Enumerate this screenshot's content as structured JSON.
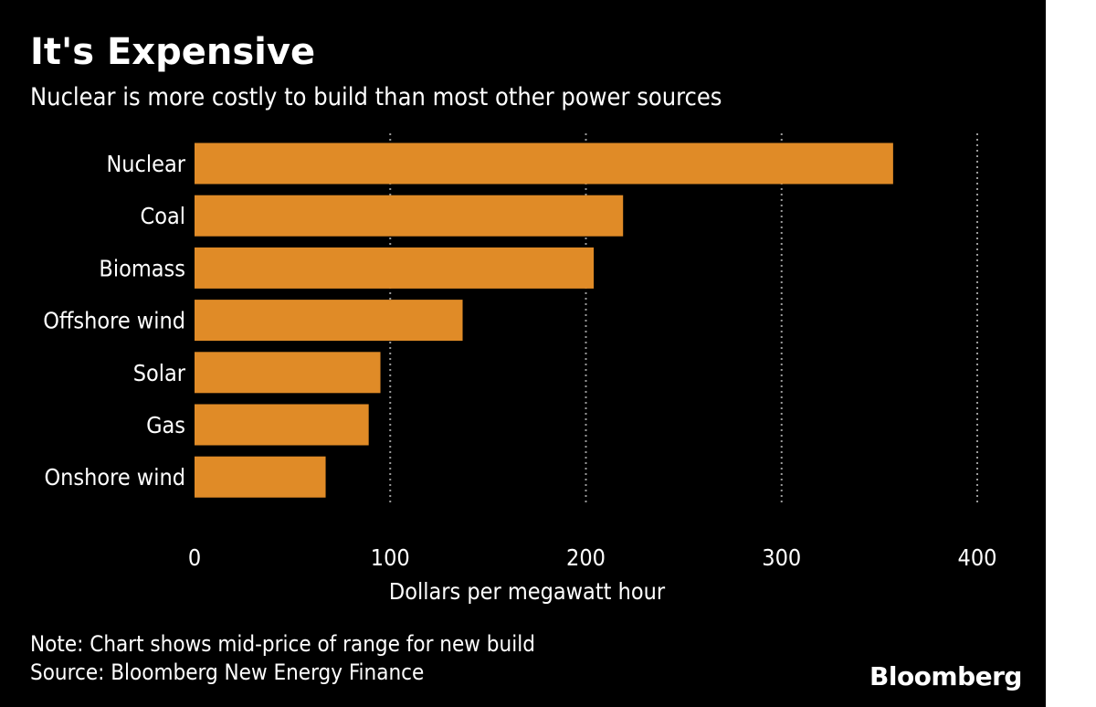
{
  "chart_data": {
    "type": "bar",
    "orientation": "horizontal",
    "title": "It's Expensive",
    "subtitle": "Nuclear is more costly to build than most other power sources",
    "categories": [
      "Nuclear",
      "Coal",
      "Biomass",
      "Offshore wind",
      "Solar",
      "Gas",
      "Onshore wind"
    ],
    "values": [
      357,
      219,
      204,
      137,
      95,
      89,
      67
    ],
    "xlabel": "Dollars per megawatt hour",
    "ylabel": "",
    "xlim": [
      0,
      400
    ],
    "xticks": [
      "0",
      "100",
      "200",
      "300",
      "400"
    ],
    "grid": "vertical dotted",
    "bar_color": "#E08B27",
    "background_color": "#000000"
  },
  "note": "Note: Chart shows mid-price of range for new build",
  "source": "Source: Bloomberg New Energy Finance",
  "brand": "Bloomberg"
}
